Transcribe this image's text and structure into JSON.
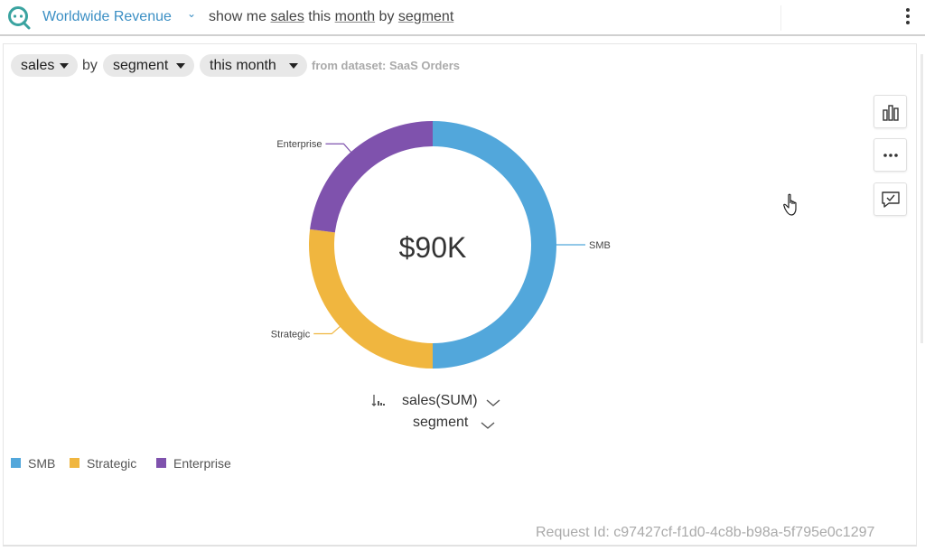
{
  "header": {
    "topic": "Worldwide Revenue",
    "query_parts": [
      {
        "text": "show me ",
        "u": false
      },
      {
        "text": "sales",
        "u": true
      },
      {
        "text": " this ",
        "u": false
      },
      {
        "text": "month",
        "u": true
      },
      {
        "text": " by ",
        "u": false
      },
      {
        "text": "segment",
        "u": true
      }
    ]
  },
  "filters": {
    "measure": "sales",
    "by": "by",
    "group": "segment",
    "period": "this month",
    "dataset": "from dataset: SaaS Orders"
  },
  "chart_data": {
    "type": "pie",
    "variant": "donut",
    "center_label": "$90K",
    "categories": [
      "SMB",
      "Strategic",
      "Enterprise"
    ],
    "values": [
      45,
      24.3,
      20.7
    ],
    "colors": [
      "#52a7db",
      "#f0b63f",
      "#7f52ad"
    ],
    "legend_position": "bottom-left"
  },
  "fields": {
    "measure": "sales(SUM)",
    "group": "segment"
  },
  "footer": {
    "request_id": "Request Id: c97427cf-f1d0-4c8b-b98a-5f795e0c1297"
  }
}
